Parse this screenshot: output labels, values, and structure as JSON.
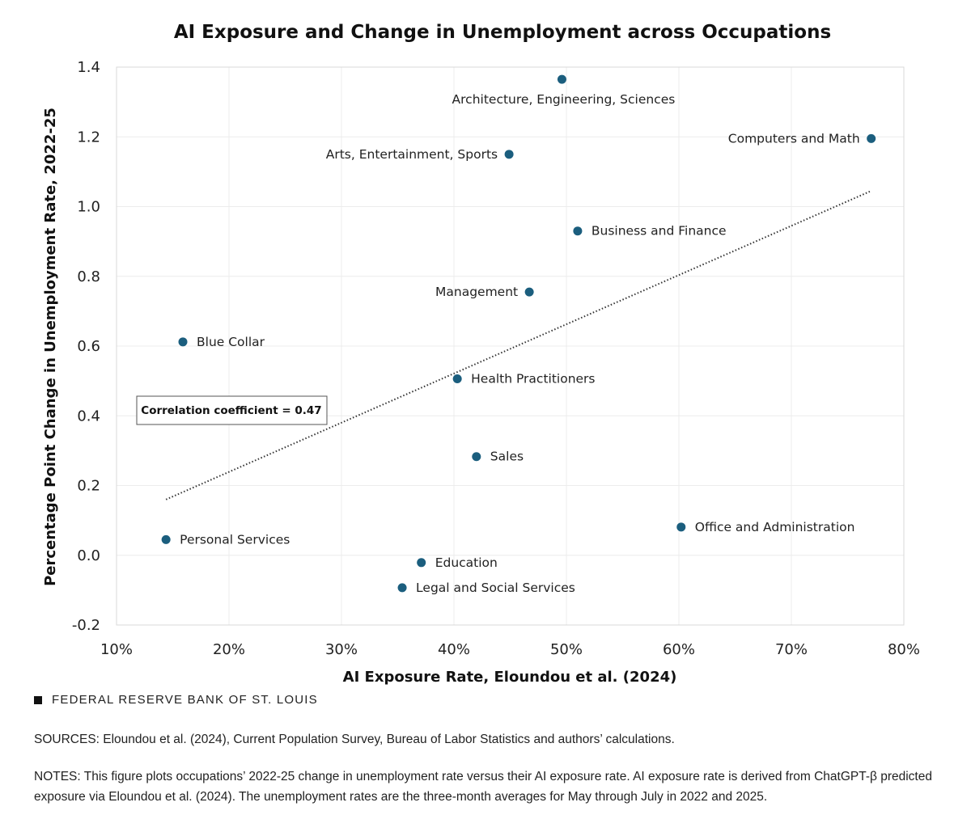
{
  "chart_data": {
    "type": "scatter",
    "title": "AI Exposure and Change in Unemployment across Occupations",
    "xlabel": "AI Exposure Rate, Eloundou et al. (2024)",
    "ylabel": "Percentage Point Change in Unemployment Rate, 2022-25",
    "xlim": [
      10,
      80
    ],
    "ylim": [
      -0.2,
      1.4
    ],
    "x_ticks": [
      "10%",
      "20%",
      "30%",
      "40%",
      "50%",
      "60%",
      "70%",
      "80%"
    ],
    "y_ticks": [
      "-0.2",
      "0.0",
      "0.2",
      "0.4",
      "0.6",
      "0.8",
      "1.0",
      "1.2",
      "1.4"
    ],
    "grid": true,
    "marker_color": "#1b5e7e",
    "points": [
      {
        "label": "Architecture, Engineering, Sciences",
        "x": 49.6,
        "y": 1.365,
        "label_pos": "below"
      },
      {
        "label": "Computers and Math",
        "x": 77.1,
        "y": 1.195,
        "label_pos": "left"
      },
      {
        "label": "Arts, Entertainment, Sports",
        "x": 44.9,
        "y": 1.15,
        "label_pos": "left"
      },
      {
        "label": "Business and Finance",
        "x": 51.0,
        "y": 0.93,
        "label_pos": "right"
      },
      {
        "label": "Management",
        "x": 46.7,
        "y": 0.755,
        "label_pos": "left"
      },
      {
        "label": "Blue Collar",
        "x": 15.9,
        "y": 0.612,
        "label_pos": "right"
      },
      {
        "label": "Health Practitioners",
        "x": 40.3,
        "y": 0.506,
        "label_pos": "right"
      },
      {
        "label": "Sales",
        "x": 42.0,
        "y": 0.283,
        "label_pos": "right"
      },
      {
        "label": "Office and Administration",
        "x": 60.2,
        "y": 0.081,
        "label_pos": "right"
      },
      {
        "label": "Personal Services",
        "x": 14.4,
        "y": 0.045,
        "label_pos": "right"
      },
      {
        "label": "Education",
        "x": 37.1,
        "y": -0.021,
        "label_pos": "right"
      },
      {
        "label": "Legal and Social Services",
        "x": 35.4,
        "y": -0.093,
        "label_pos": "right"
      }
    ],
    "trendline": {
      "x": [
        14.4,
        77.1
      ],
      "y": [
        0.16,
        1.045
      ],
      "style": "dotted"
    },
    "annotation": "Correlation coefficient = 0.47"
  },
  "footer": {
    "brand": "FEDERAL RESERVE BANK OF ST. LOUIS",
    "sources": "SOURCES: Eloundou et al. (2024), Current Population Survey, Bureau of Labor Statistics and authors’ calculations.",
    "notes": "NOTES: This figure plots occupations’ 2022-25 change in unemployment rate versus their AI exposure rate. AI exposure rate is derived from ChatGPT-β predicted exposure via Eloundou et al. (2024). The unemployment rates are the three-month averages for May through July in 2022 and 2025."
  }
}
